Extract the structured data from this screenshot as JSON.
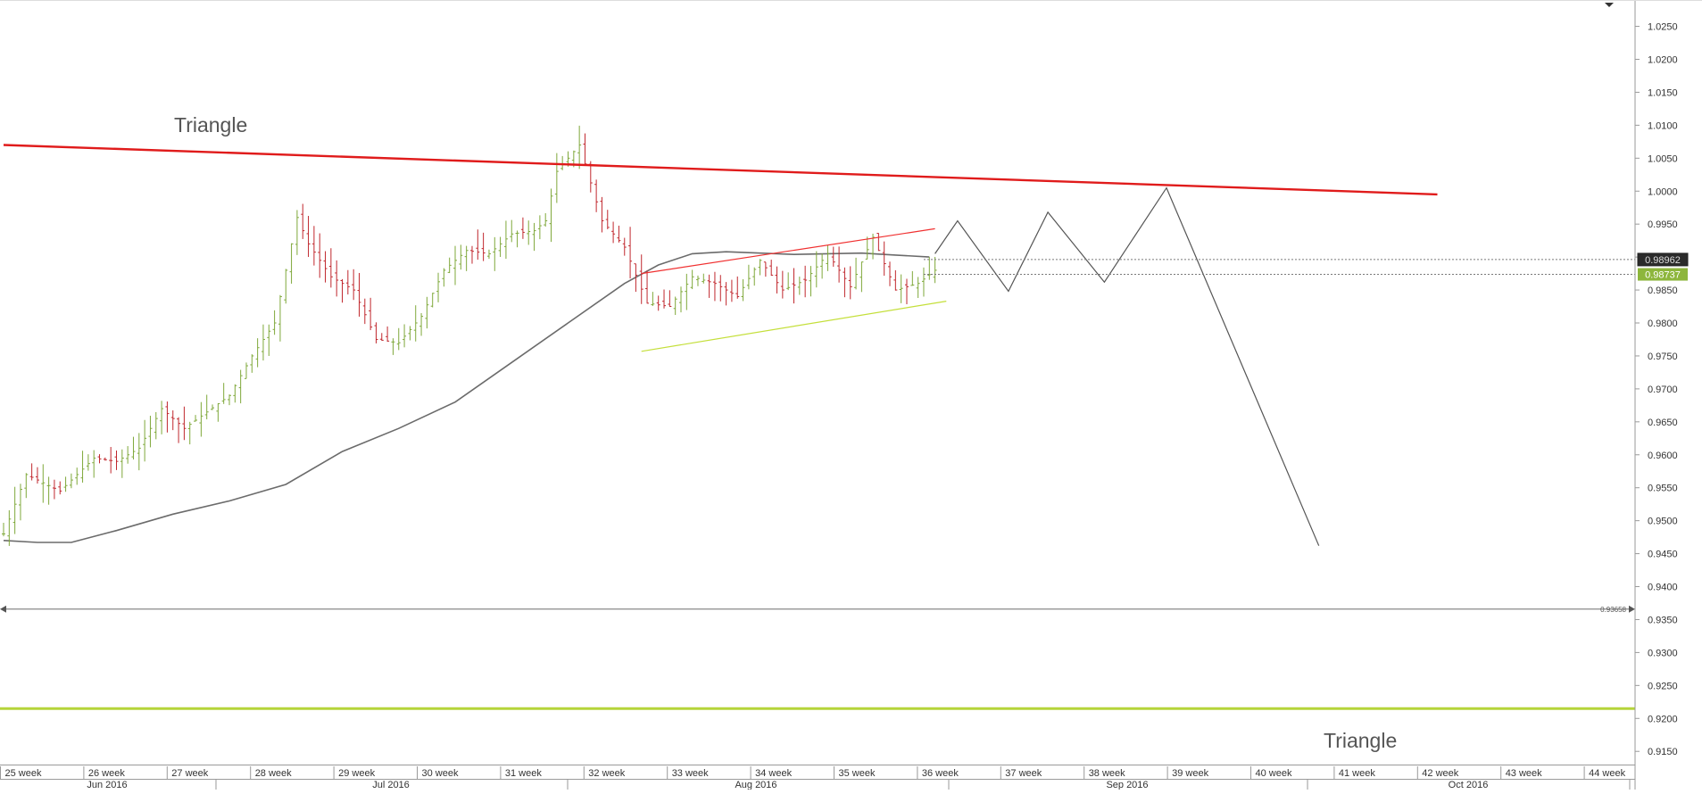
{
  "chart_data": {
    "type": "bar",
    "style": "ohlc",
    "title": "",
    "xlabel": "",
    "ylabel": "",
    "ylim": [
      0.913,
      1.029
    ],
    "y_ticks": [
      "1.0250",
      "1.0200",
      "1.0150",
      "1.0100",
      "1.0050",
      "1.0000",
      "0.9950",
      "0.9900",
      "0.9850",
      "0.9800",
      "0.9750",
      "0.9700",
      "0.9650",
      "0.9600",
      "0.9550",
      "0.9500",
      "0.9450",
      "0.9400",
      "0.9350",
      "0.9300",
      "0.9250",
      "0.9200",
      "0.9150"
    ],
    "week_labels": [
      "25 week",
      "26 week",
      "27 week",
      "28 week",
      "29 week",
      "30 week",
      "31 week",
      "32 week",
      "33 week",
      "34 week",
      "35 week",
      "36 week",
      "37 week",
      "38 week",
      "39 week",
      "40 week",
      "41 week",
      "42 week",
      "43 week",
      "44 week"
    ],
    "month_labels": [
      "Jun 2016",
      "Jul 2016",
      "Aug 2016",
      "Sep 2016",
      "Oct 2016"
    ],
    "price_labels": {
      "upper": "0.98962",
      "current": "0.98737",
      "level": "0.93658"
    },
    "annotations": {
      "triangle_top": "Triangle",
      "triangle_bottom": "Triangle"
    },
    "horizontal_levels": {
      "grey_level": 0.93658,
      "green_level": 0.9215
    },
    "resistance_line": {
      "x": [
        0,
        127.0
      ],
      "y": [
        1.007,
        0.9995
      ]
    },
    "channel_upper": {
      "x": [
        56.5,
        82.5
      ],
      "y": [
        0.9875,
        0.9943
      ]
    },
    "channel_lower": {
      "x": [
        56.5,
        83.5
      ],
      "y": [
        0.9757,
        0.9833
      ]
    },
    "projection": {
      "x": [
        82.5,
        84.5,
        89.0,
        92.5,
        97.5,
        103.0,
        116.5
      ],
      "y": [
        0.9905,
        0.9955,
        0.9848,
        0.9968,
        0.9862,
        1.0005,
        0.9462
      ]
    },
    "moving_average": {
      "x": [
        0,
        3,
        6,
        10,
        15,
        20,
        25,
        30,
        35,
        40,
        45,
        50,
        55,
        58,
        61,
        64,
        67,
        70,
        73,
        76,
        79,
        82
      ],
      "y": [
        0.947,
        0.9467,
        0.9467,
        0.9485,
        0.951,
        0.953,
        0.9555,
        0.9605,
        0.964,
        0.968,
        0.974,
        0.98,
        0.986,
        0.9888,
        0.9905,
        0.9908,
        0.9906,
        0.9904,
        0.9905,
        0.9906,
        0.9903,
        0.99
      ]
    },
    "price_anchors": {
      "x": [
        0,
        2,
        5,
        8,
        10,
        12,
        14,
        16,
        18,
        20,
        22,
        24,
        26,
        27,
        29,
        31,
        33,
        35,
        37,
        39,
        41,
        43,
        45,
        47,
        48,
        49,
        51,
        53,
        55,
        57,
        59,
        61,
        63,
        65,
        67,
        69,
        71,
        73,
        75,
        77,
        79,
        81,
        82.5
      ],
      "y": [
        0.948,
        0.957,
        0.9545,
        0.9595,
        0.959,
        0.961,
        0.967,
        0.964,
        0.9665,
        0.969,
        0.975,
        0.98,
        0.996,
        0.992,
        0.987,
        0.985,
        0.9775,
        0.977,
        0.981,
        0.988,
        0.991,
        0.9905,
        0.9935,
        0.994,
        0.9955,
        1.003,
        1.007,
        0.9955,
        0.9915,
        0.983,
        0.9825,
        0.987,
        0.986,
        0.984,
        0.9895,
        0.985,
        0.9865,
        0.9905,
        0.9855,
        0.993,
        0.985,
        0.986,
        0.988
      ]
    }
  }
}
